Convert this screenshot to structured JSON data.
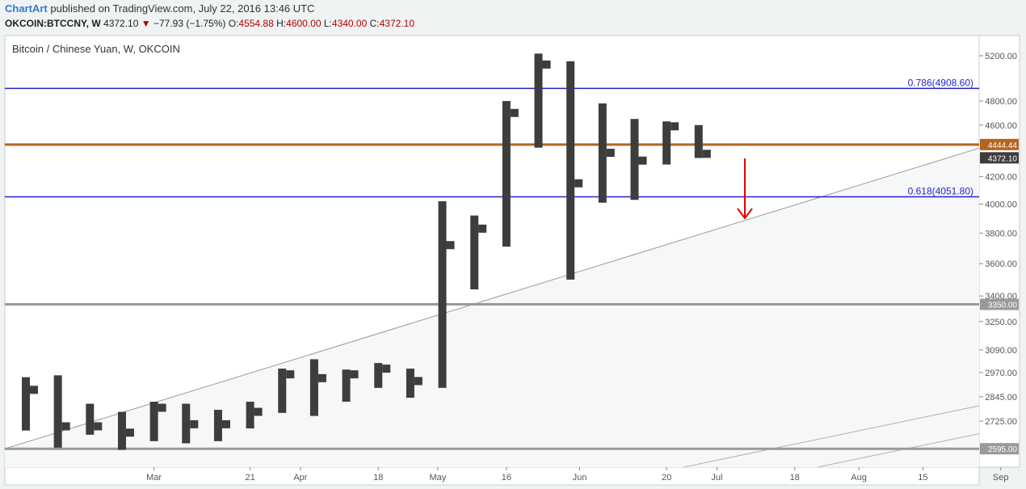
{
  "header": {
    "brand": "ChartArt",
    "published": "published on TradingView.com, July 22, 2016 13:46 UTC",
    "symbol": "OKCOIN:BTCCNY, W",
    "last": "4372.10",
    "change": "−77.93 (−1.75%)",
    "open_label": "O:",
    "open": "4554.88",
    "high_label": "H:",
    "high": "4600.00",
    "low_label": "L:",
    "low": "4340.00",
    "close_label": "C:",
    "close": "4372.10"
  },
  "chart_data": {
    "type": "ohlc-bar",
    "title": "Bitcoin / Chinese Yuan, W, OKCOIN",
    "scale": "log",
    "y_ticks": [
      5200,
      4800,
      4600,
      4200,
      4000,
      3800,
      3600,
      3400,
      3250,
      3090,
      2970,
      2845,
      2725
    ],
    "y_tick_labels": [
      "5200.00",
      "4800.00",
      "4600.00",
      "4200.00",
      "4000.00",
      "3800.00",
      "3600.00",
      "3400.00",
      "3250.00",
      "3090.00",
      "2970.00",
      "2845.00",
      "2725.00"
    ],
    "x_ticks": [
      "Mar",
      "21",
      "Apr",
      "18",
      "May",
      "16",
      "Jun",
      "20",
      "Jul",
      "18",
      "Aug",
      "15",
      "Sep"
    ],
    "bars": [
      {
        "date": "2016-02-01",
        "o": 2780,
        "h": 2945,
        "l": 2680,
        "c": 2880
      },
      {
        "date": "2016-02-08",
        "o": 2660,
        "h": 2955,
        "l": 2600,
        "c": 2700
      },
      {
        "date": "2016-02-15",
        "o": 2720,
        "h": 2810,
        "l": 2660,
        "c": 2700
      },
      {
        "date": "2016-02-22",
        "o": 2690,
        "h": 2770,
        "l": 2590,
        "c": 2670
      },
      {
        "date": "2016-02-29",
        "o": 2645,
        "h": 2820,
        "l": 2630,
        "c": 2790
      },
      {
        "date": "2016-03-07",
        "o": 2760,
        "h": 2810,
        "l": 2620,
        "c": 2710
      },
      {
        "date": "2016-03-14",
        "o": 2660,
        "h": 2780,
        "l": 2630,
        "c": 2710
      },
      {
        "date": "2016-03-21",
        "o": 2730,
        "h": 2820,
        "l": 2690,
        "c": 2770
      },
      {
        "date": "2016-03-28",
        "o": 2920,
        "h": 2990,
        "l": 2765,
        "c": 2960
      },
      {
        "date": "2016-04-04",
        "o": 2840,
        "h": 3040,
        "l": 2750,
        "c": 2940
      },
      {
        "date": "2016-04-11",
        "o": 2950,
        "h": 2985,
        "l": 2820,
        "c": 2960
      },
      {
        "date": "2016-04-18",
        "o": 2970,
        "h": 3020,
        "l": 2890,
        "c": 2990
      },
      {
        "date": "2016-04-25",
        "o": 2960,
        "h": 2990,
        "l": 2840,
        "c": 2925
      },
      {
        "date": "2016-05-02",
        "o": 2890,
        "h": 4020,
        "l": 2890,
        "c": 3720
      },
      {
        "date": "2016-05-09",
        "o": 3760,
        "h": 3920,
        "l": 3440,
        "c": 3830
      },
      {
        "date": "2016-05-16",
        "o": 3710,
        "h": 4800,
        "l": 3710,
        "c": 4700
      },
      {
        "date": "2016-05-23",
        "o": 4440,
        "h": 5220,
        "l": 4420,
        "c": 5120
      },
      {
        "date": "2016-05-30",
        "o": 4250,
        "h": 5150,
        "l": 3500,
        "c": 4150
      },
      {
        "date": "2016-06-06",
        "o": 4020,
        "h": 4780,
        "l": 4010,
        "c": 4380
      },
      {
        "date": "2016-06-13",
        "o": 4050,
        "h": 4650,
        "l": 4030,
        "c": 4320
      },
      {
        "date": "2016-06-20",
        "o": 4440,
        "h": 4630,
        "l": 4290,
        "c": 4590
      },
      {
        "date": "2016-06-27",
        "o": 4554.88,
        "h": 4600,
        "l": 4340,
        "c": 4372.1
      }
    ],
    "levels": [
      {
        "label": "0.786(4908.60)",
        "value": 4908.6,
        "color": "#2222cc"
      },
      {
        "label": "0.618(4051.80)",
        "value": 4051.8,
        "color": "#2222cc"
      }
    ],
    "horizontal_lines": [
      {
        "value": 4444.44,
        "label": "4444.44",
        "color": "#b5651d"
      },
      {
        "value": 3350,
        "label": "3350.00",
        "color": "#999999"
      },
      {
        "value": 2595,
        "label": "2595.00",
        "color": "#999999"
      }
    ],
    "last_price": {
      "value": 4372.1,
      "label": "4372.10"
    },
    "colors": {
      "bars": "#3d3d3d",
      "arrow": "#e00000",
      "fib": "#2222cc",
      "price_line": "#b5651d",
      "support": "#999999"
    }
  }
}
